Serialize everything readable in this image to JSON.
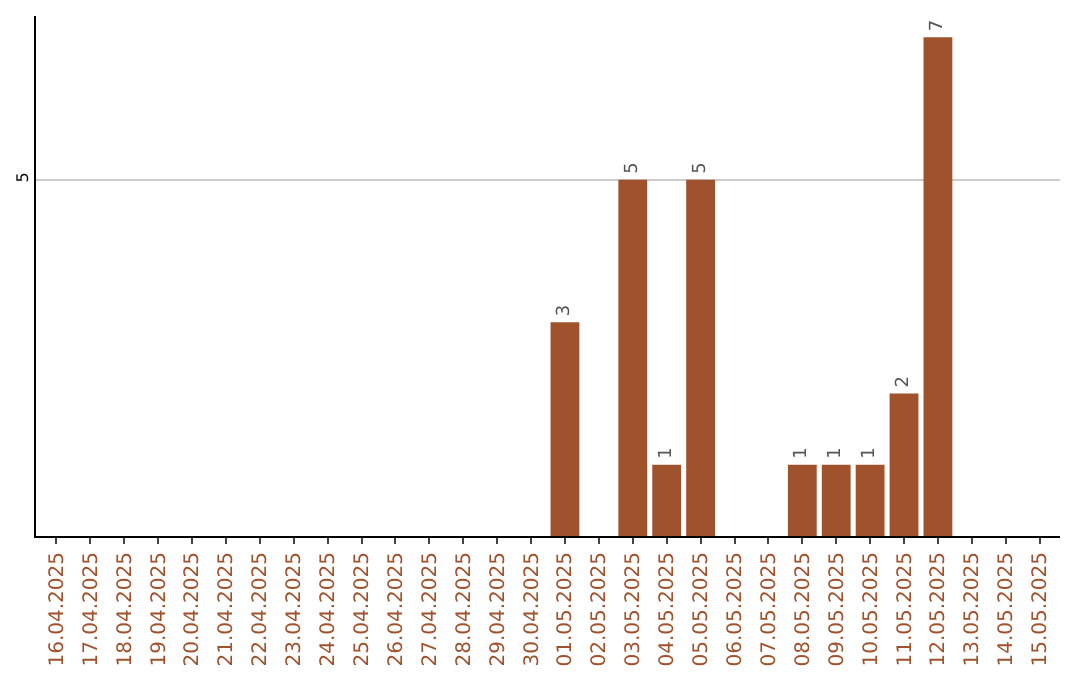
{
  "chart_data": {
    "type": "bar",
    "categories": [
      "16.04.2025",
      "17.04.2025",
      "18.04.2025",
      "19.04.2025",
      "20.04.2025",
      "21.04.2025",
      "22.04.2025",
      "23.04.2025",
      "24.04.2025",
      "25.04.2025",
      "26.04.2025",
      "27.04.2025",
      "28.04.2025",
      "29.04.2025",
      "30.04.2025",
      "01.05.2025",
      "02.05.2025",
      "03.05.2025",
      "04.05.2025",
      "05.05.2025",
      "06.05.2025",
      "07.05.2025",
      "08.05.2025",
      "09.05.2025",
      "10.05.2025",
      "11.05.2025",
      "12.05.2025",
      "13.05.2025",
      "14.05.2025",
      "15.05.2025"
    ],
    "values": [
      null,
      null,
      null,
      null,
      null,
      null,
      null,
      null,
      null,
      null,
      null,
      null,
      null,
      null,
      null,
      3,
      null,
      5,
      1,
      5,
      null,
      null,
      1,
      1,
      1,
      2,
      7,
      null,
      null,
      null
    ],
    "data_labels": true,
    "color": "#a0522d",
    "ylim": [
      0,
      7.3
    ],
    "yticks": [
      5
    ],
    "grid": "y"
  }
}
